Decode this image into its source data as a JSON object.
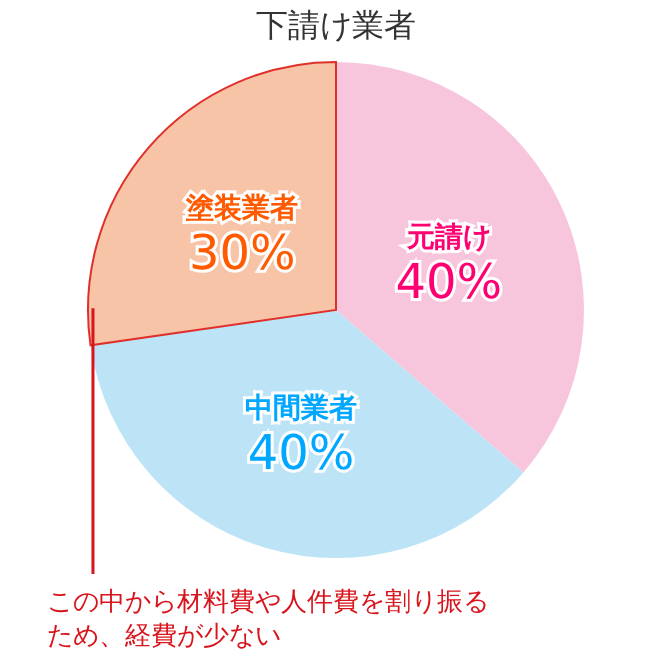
{
  "chart_data": {
    "type": "pie",
    "title": "下請け業者",
    "categories": [
      "元請け",
      "中間業者",
      "塗装業者"
    ],
    "values": [
      40,
      40,
      30
    ],
    "value_labels": [
      "40%",
      "40%",
      "30%"
    ],
    "colors": [
      "#f7c6dc",
      "#bde3f7",
      "#f7c4a8"
    ],
    "annotations": [
      "この中から材料費や人件費を割り振るため、経費が少ない"
    ]
  }
}
